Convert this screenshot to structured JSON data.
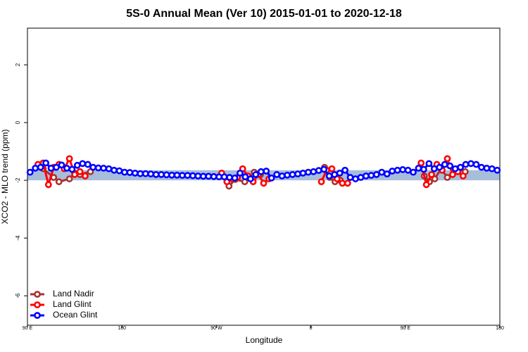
{
  "chart_data": {
    "type": "line",
    "title": "5S-0 Annual Mean (Ver 10)   2015-01-01 to 2020-12-18",
    "x_label": "Longitude",
    "y_label": "XCO2 - MLO trend (ppm)",
    "xlim": [
      90,
      540
    ],
    "ylim": [
      -7.02,
      3.27
    ],
    "xticks": [
      {
        "value": 90,
        "label": "90 E"
      },
      180,
      {
        "value": 270,
        "label": "90 W"
      },
      {
        "value": 360,
        "label": "0"
      },
      {
        "value": 450,
        "label": "90 E"
      },
      {
        "value": 540,
        "label": "180"
      }
    ],
    "yticks": [
      -6,
      -4,
      -2,
      0,
      2
    ],
    "band": {
      "range": [
        -2.0,
        -1.65
      ],
      "color": "#a7bedb"
    },
    "legend": "bottom-left",
    "series": [
      {
        "name": "Land Nadir",
        "color": "#a83232",
        "x": [
          105,
          115,
          120,
          130,
          135,
          140,
          150,
          155,
          282,
          288,
          297,
          306,
          312,
          316,
          373,
          378,
          383,
          388,
          390,
          468,
          473,
          478,
          484,
          490,
          500,
          507
        ],
        "values": [
          -1.6,
          -1.9,
          -2.05,
          -1.95,
          -1.75,
          -1.8,
          -1.7,
          null,
          -2.2,
          -1.97,
          -2.05,
          -1.72,
          -1.8,
          null,
          -1.55,
          -1.9,
          -2.05,
          -2.0,
          null,
          -1.85,
          -2.05,
          -1.95,
          -1.6,
          -1.9,
          -1.6,
          -1.7
        ]
      },
      {
        "name": "Land Glint",
        "color": "#ff0000",
        "x": [
          100,
          105,
          110,
          115,
          120,
          125,
          130,
          135,
          140,
          145,
          150,
          275,
          280,
          285,
          290,
          295,
          300,
          305,
          310,
          315,
          320,
          325,
          370,
          375,
          380,
          385,
          390,
          395,
          400,
          465,
          470,
          475,
          480,
          485,
          490,
          495,
          500,
          505
        ],
        "values": [
          -1.45,
          -1.4,
          -2.15,
          -1.55,
          -1.45,
          -1.6,
          -1.25,
          -1.8,
          -1.7,
          -1.85,
          null,
          -1.75,
          -2.05,
          -1.95,
          -1.9,
          -1.6,
          -1.85,
          -2.05,
          -1.8,
          -2.1,
          -1.95,
          null,
          -2.05,
          -1.65,
          -1.6,
          -1.95,
          -2.1,
          -2.1,
          null,
          -1.4,
          -2.15,
          -1.8,
          -1.45,
          -1.65,
          -1.25,
          -1.8,
          -1.7,
          -1.85
        ]
      },
      {
        "name": "Ocean Glint",
        "color": "#0000ff",
        "x": [
          92.5,
          97.5,
          102.5,
          107.5,
          112.5,
          117.5,
          122.5,
          127.5,
          132.5,
          137.5,
          142.5,
          147.5,
          152.5,
          157.5,
          162.5,
          167.5,
          172.5,
          177.5,
          182.5,
          187.5,
          192.5,
          197.5,
          202.5,
          207.5,
          212.5,
          217.5,
          222.5,
          227.5,
          232.5,
          237.5,
          242.5,
          247.5,
          252.5,
          257.5,
          262.5,
          267.5,
          272.5,
          277.5,
          282.5,
          287.5,
          292.5,
          297.5,
          302.5,
          307.5,
          312.5,
          317.5,
          322.5,
          327.5,
          332.5,
          337.5,
          342.5,
          347.5,
          352.5,
          357.5,
          362.5,
          367.5,
          372.5,
          377.5,
          382.5,
          387.5,
          392.5,
          397.5,
          402.5,
          407.5,
          412.5,
          417.5,
          422.5,
          427.5,
          432.5,
          437.5,
          442.5,
          447.5,
          452.5,
          457.5,
          462.5,
          467.5,
          472.5,
          477.5,
          482.5,
          487.5,
          492.5,
          497.5,
          502.5,
          507.5,
          512.5,
          517.5,
          522.5,
          527.5,
          532.5,
          537.5
        ],
        "values": [
          -1.72,
          -1.58,
          -1.55,
          -1.4,
          -1.58,
          -1.55,
          -1.47,
          -1.58,
          -1.62,
          -1.48,
          -1.42,
          -1.45,
          -1.55,
          -1.57,
          -1.58,
          -1.6,
          -1.65,
          -1.67,
          -1.72,
          -1.73,
          -1.75,
          -1.77,
          -1.77,
          -1.78,
          -1.8,
          -1.8,
          -1.81,
          -1.82,
          -1.82,
          -1.83,
          -1.83,
          -1.84,
          -1.85,
          -1.86,
          -1.86,
          -1.87,
          -1.88,
          -1.88,
          -1.9,
          -1.92,
          -1.75,
          -1.88,
          -1.95,
          -1.8,
          -1.7,
          -1.68,
          -1.92,
          -1.8,
          -1.85,
          -1.82,
          -1.8,
          -1.78,
          -1.75,
          -1.72,
          -1.7,
          -1.66,
          -1.62,
          -1.85,
          -1.8,
          -1.75,
          -1.65,
          -1.9,
          -1.95,
          -1.9,
          -1.85,
          -1.83,
          -1.8,
          -1.72,
          -1.78,
          -1.68,
          -1.65,
          -1.63,
          -1.65,
          -1.72,
          -1.58,
          -1.62,
          -1.42,
          -1.6,
          -1.55,
          -1.45,
          -1.5,
          -1.6,
          -1.55,
          -1.45,
          -1.42,
          -1.45,
          -1.55,
          -1.58,
          -1.6,
          -1.65
        ]
      }
    ]
  }
}
